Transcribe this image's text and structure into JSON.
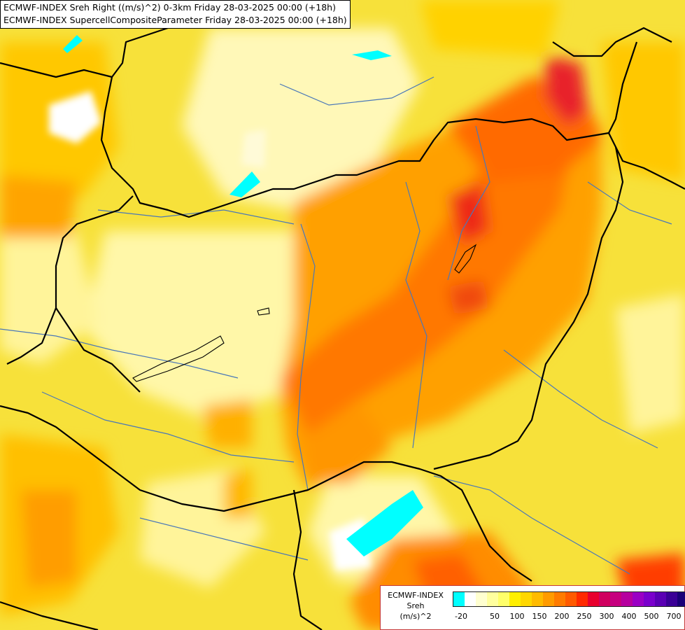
{
  "header": {
    "line1": "ECMWF-INDEX Sreh Right ((m/s)^2) 0-3km Friday 28-03-2025 00:00 (+18h)",
    "line2": "ECMWF-INDEX SupercellCompositeParameter Friday 28-03-2025 00:00 (+18h)"
  },
  "legend": {
    "line1": "ECMWF-INDEX",
    "line2": "Sreh",
    "line3": "(m/s)^2",
    "colors": [
      "#00ffff",
      "#ffffff",
      "#ffffd0",
      "#ffff9e",
      "#ffff6a",
      "#ffef00",
      "#ffd700",
      "#ffbb00",
      "#ff9b00",
      "#ff7b00",
      "#ff5a00",
      "#ff2a00",
      "#e8002d",
      "#d0005f",
      "#c6007f",
      "#b6009f",
      "#9a00c4",
      "#7a00cc",
      "#5a00b4",
      "#3a0096",
      "#1a0078"
    ],
    "ticks": [
      "-20",
      "50",
      "100",
      "150",
      "200",
      "250",
      "300",
      "400",
      "500",
      "700"
    ]
  },
  "map": {
    "base_color": "#f7ea3c",
    "border_color": "#000000",
    "river_color": "#3f6fb0",
    "lake_color": "#00ffff"
  }
}
